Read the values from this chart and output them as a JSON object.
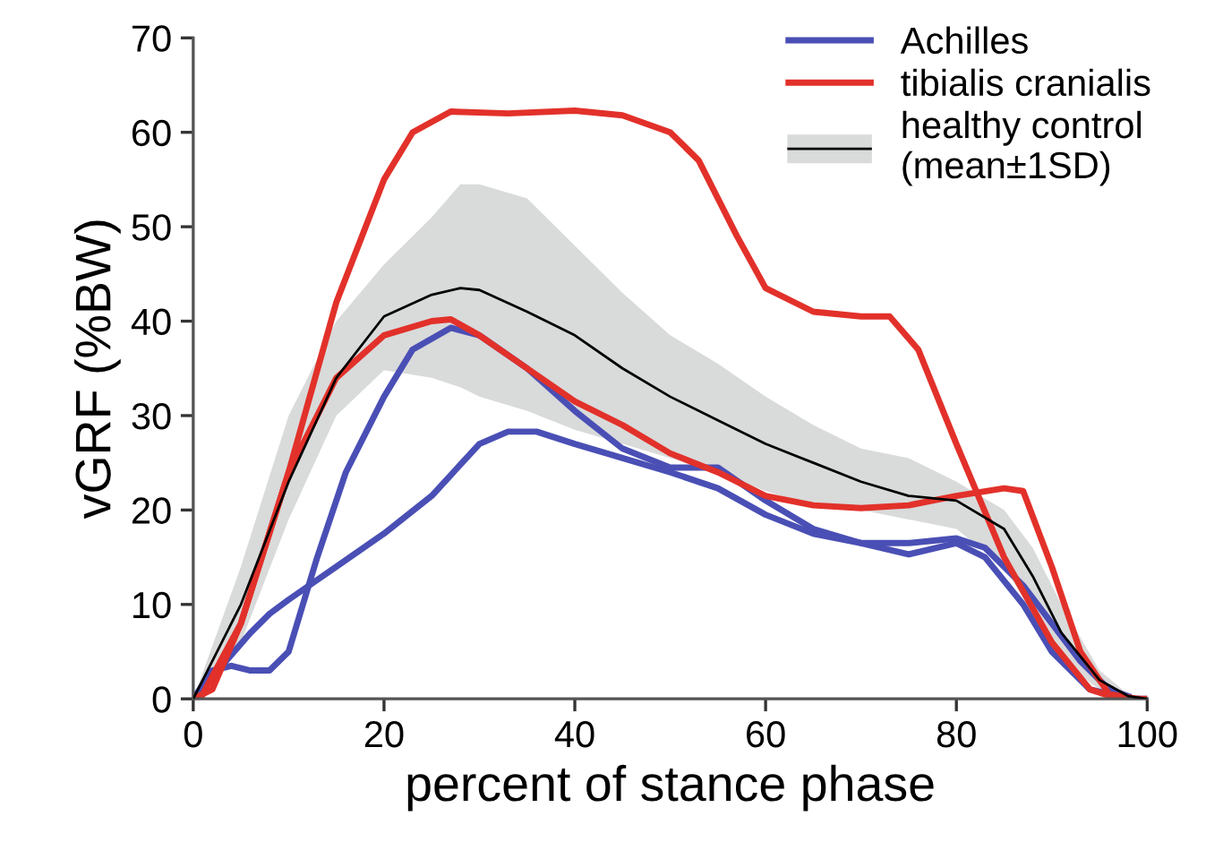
{
  "chart_data": {
    "type": "line",
    "xlabel": "percent of stance phase",
    "ylabel": "vGRF (%BW)",
    "xlim": [
      0,
      100
    ],
    "xticks": [
      0,
      20,
      40,
      60,
      80,
      100
    ],
    "ylim": [
      0,
      70
    ],
    "yticks": [
      0,
      10,
      20,
      30,
      40,
      50,
      60,
      70
    ],
    "grid": false,
    "legend": "top right",
    "marker": "none",
    "line_style": "solid",
    "series": [
      {
        "name": "Achilles",
        "color": "#4a4fb5",
        "x": [
          0,
          2,
          4,
          6,
          8,
          10,
          13,
          16,
          20,
          23,
          27,
          30,
          35,
          40,
          45,
          50,
          55,
          60,
          65,
          70,
          75,
          80,
          83,
          87,
          90,
          94,
          98,
          100
        ],
        "values": [
          0,
          3,
          3.5,
          3,
          3,
          5,
          15,
          24,
          32,
          37,
          39.3,
          38.5,
          35,
          30.5,
          26.5,
          24.5,
          24.5,
          21,
          18,
          16.5,
          15.3,
          16.5,
          15,
          10,
          5,
          1,
          0,
          0
        ]
      },
      {
        "name": null,
        "color": "#4a4fb5",
        "x": [
          1,
          3,
          6,
          8,
          10,
          15,
          20,
          25,
          30,
          33,
          36,
          40,
          45,
          50,
          55,
          60,
          65,
          70,
          75,
          80,
          83,
          87,
          90,
          93,
          96,
          98
        ],
        "values": [
          1,
          3.5,
          7,
          9,
          10.5,
          14,
          17.5,
          21.5,
          27,
          28.3,
          28.3,
          27,
          25.5,
          24,
          22.3,
          19.5,
          17.5,
          16.5,
          16.5,
          17,
          16,
          12,
          8,
          4,
          1,
          0.3
        ]
      },
      {
        "name": "tibialis cranialis",
        "color": "#e2312a",
        "x": [
          0,
          2,
          5,
          10,
          15,
          20,
          23,
          27,
          33,
          40,
          45,
          50,
          53,
          57,
          60,
          65,
          70,
          73,
          76,
          80,
          85,
          90,
          94,
          97,
          100
        ],
        "values": [
          0,
          1,
          8,
          24,
          42,
          55,
          60,
          62.2,
          62,
          62.3,
          61.8,
          60,
          57,
          49,
          43.5,
          41,
          40.5,
          40.5,
          37,
          27,
          15,
          6,
          1,
          0,
          0
        ]
      },
      {
        "name": null,
        "color": "#e2312a",
        "x": [
          1,
          5,
          10,
          15,
          20,
          25,
          27,
          30,
          35,
          40,
          45,
          50,
          55,
          60,
          65,
          70,
          75,
          80,
          85,
          87,
          90,
          93,
          96,
          99
        ],
        "values": [
          0.5,
          8,
          24,
          34,
          38.5,
          40,
          40.2,
          38.5,
          35,
          31.5,
          29,
          26,
          24,
          21.5,
          20.5,
          20.2,
          20.5,
          21.5,
          22.3,
          22,
          14,
          5,
          0.5,
          0
        ]
      },
      {
        "name": "healthy control\n(mean±1SD)",
        "color": "#000000",
        "x": [
          0,
          5,
          10,
          15,
          20,
          25,
          28,
          30,
          35,
          40,
          45,
          50,
          55,
          60,
          65,
          70,
          75,
          80,
          85,
          88,
          91,
          95,
          98,
          100
        ],
        "values": [
          0,
          10,
          23,
          34,
          40.5,
          42.8,
          43.5,
          43.3,
          41,
          38.5,
          35,
          32,
          29.5,
          27,
          25,
          23,
          21.5,
          21,
          18,
          13,
          7,
          2,
          0.3,
          0
        ],
        "upper": [
          0,
          14,
          30,
          40,
          46,
          51,
          54.5,
          54.5,
          53,
          48,
          43,
          38.5,
          35.5,
          32,
          29,
          26.5,
          25.5,
          23,
          20,
          16,
          10,
          3,
          0.5,
          0
        ],
        "lower": [
          0,
          6,
          19,
          30,
          34.8,
          34,
          33,
          32,
          30.5,
          28.5,
          27,
          25.5,
          24,
          22,
          20.5,
          20,
          19,
          18,
          14,
          9,
          4,
          1,
          0,
          0
        ]
      }
    ]
  }
}
